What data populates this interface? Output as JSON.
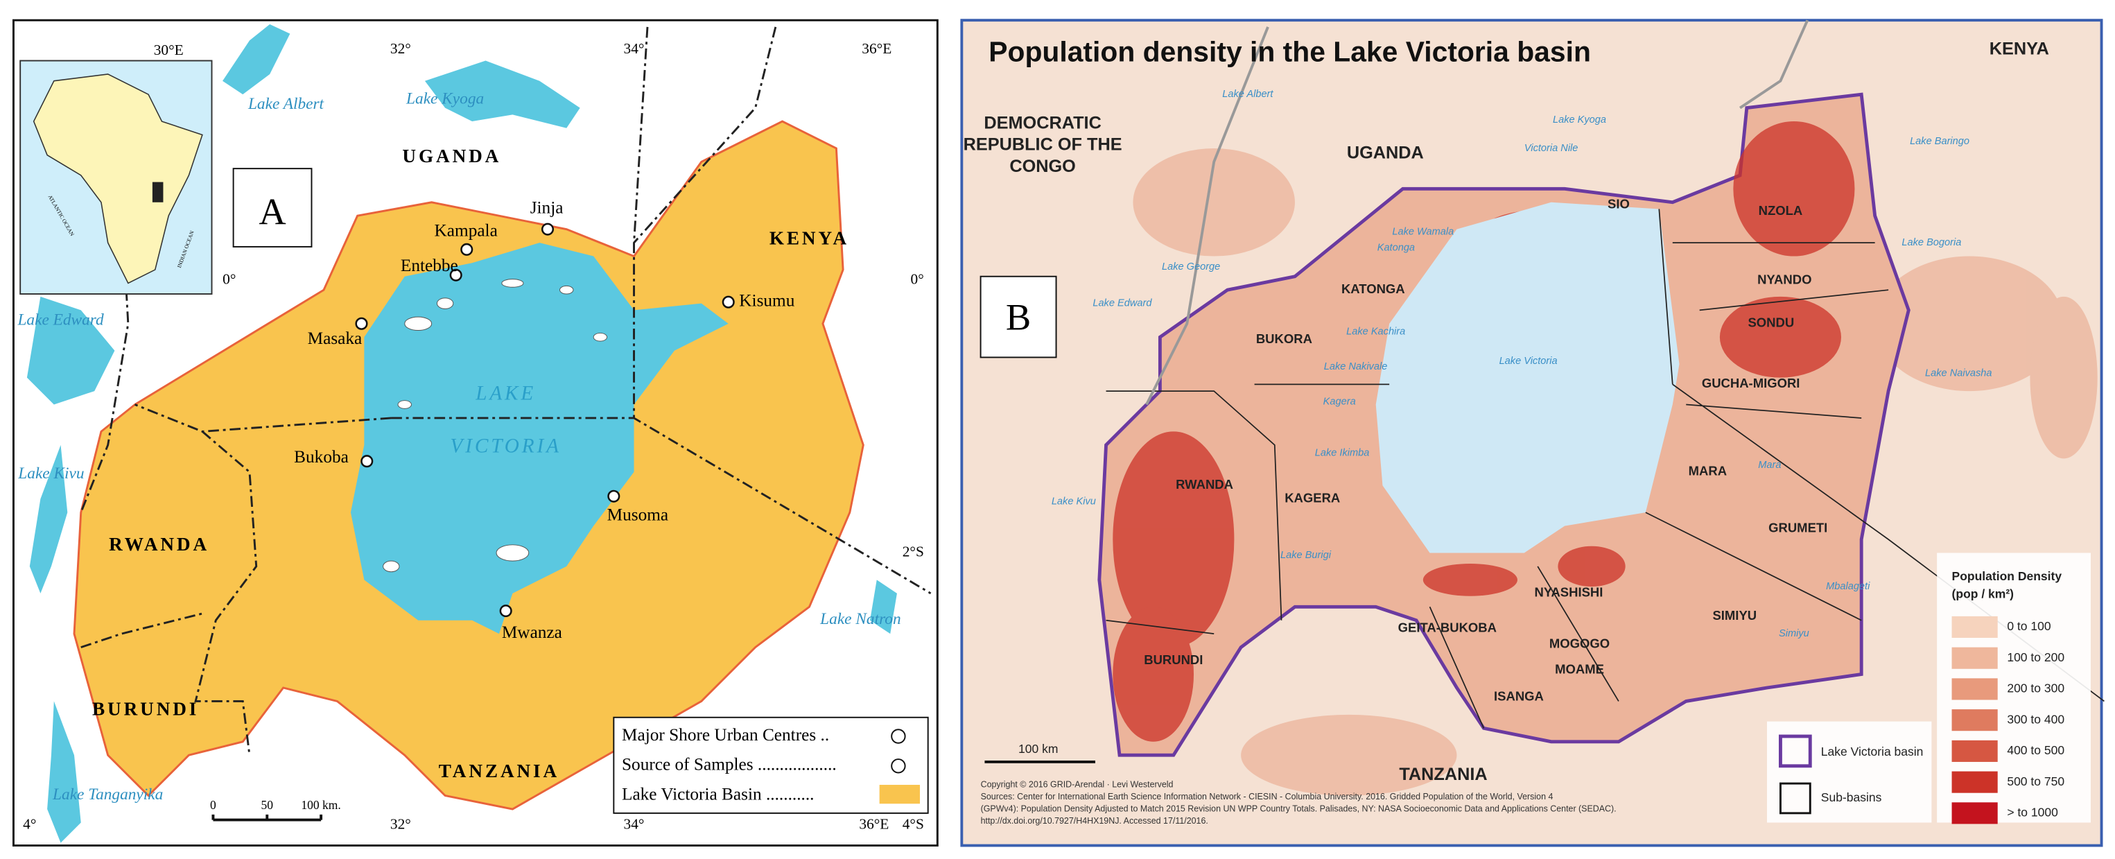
{
  "panel_a": {
    "label": "A",
    "graticule": [
      "30°E",
      "32°",
      "34°",
      "36°E",
      "0°",
      "0°",
      "2°S",
      "4°",
      "32°",
      "34°",
      "36°E",
      "4°S"
    ],
    "countries": [
      "UGANDA",
      "KENYA",
      "RWANDA",
      "BURUNDI",
      "TANZANIA"
    ],
    "lakes": [
      "Lake Albert",
      "Lake Kyoga",
      "Lake Edward",
      "Lake Kivu",
      "Lake Natron",
      "Lake Tanganyika",
      "LAKE",
      "VICTORIA"
    ],
    "towns": [
      "Kampala",
      "Jinja",
      "Entebbe",
      "Masaka",
      "Kisumu",
      "Bukoba",
      "Musoma",
      "Mwanza"
    ],
    "inset": [
      "ATLANTIC OCEAN",
      "INDIAN OCEAN"
    ],
    "legend": [
      "Major Shore Urban Centres ..",
      "Source of Samples ..................",
      "Lake Victoria Basin ..........."
    ],
    "scale": [
      "0",
      "50",
      "100 km."
    ]
  },
  "panel_b": {
    "title": "Population density in the Lake Victoria basin",
    "label": "B",
    "countries": [
      "KENYA",
      "DEMOCRATIC",
      "REPUBLIC OF THE",
      "CONGO",
      "UGANDA",
      "TANZANIA"
    ],
    "sub_basins": [
      "SIO",
      "NZOLA",
      "KATONGA",
      "NYANDO",
      "SONDU",
      "BUKORA",
      "GUCHA-MIGORI",
      "RWANDA",
      "KAGERA",
      "MARA",
      "GRUMETI",
      "BURUNDI",
      "NYASHISHI",
      "SIMIYU",
      "GEITA-BUKOBA",
      "MOGOGO",
      "MOAME",
      "ISANGA"
    ],
    "water": [
      "Lake Albert",
      "Lake Kyoga",
      "Victoria Nile",
      "Lake Wamala",
      "Katonga",
      "Lake George",
      "Lake Edward",
      "Lake Kachira",
      "Lake Nakivale",
      "Kagera",
      "Lake Ikimba",
      "Lake Kivu",
      "Lake Burigi",
      "Lake Victoria",
      "Lake Baringo",
      "Lake Bogoria",
      "Lake Naivasha",
      "Mara",
      "Mbalageti",
      "Simiyu"
    ],
    "legend": {
      "title": "Population Density",
      "unit": "(pop / km²)",
      "classes": [
        "0 to 100",
        "100 to 200",
        "200 to 300",
        "300 to 400",
        "400 to 500",
        "500 to 750",
        "> to 1000"
      ],
      "basin": "Lake Victoria basin",
      "sub_basins": "Sub-basins"
    },
    "scale": "100 km",
    "sources": [
      "Copyright © 2016 GRID-Arendal · Levi Westerveld",
      "Sources: Center for International Earth Science Information Network - CIESIN - Columbia University. 2016. Gridded Population of the World, Version 4",
      "(GPWv4): Population Density Adjusted to Match 2015 Revision UN WPP Country Totals. Palisades, NY: NASA Socioeconomic Data and Applications Center (SEDAC).",
      "http://dx.doi.org/10.7927/H4HX19NJ. Accessed 17/11/2016."
    ]
  }
}
